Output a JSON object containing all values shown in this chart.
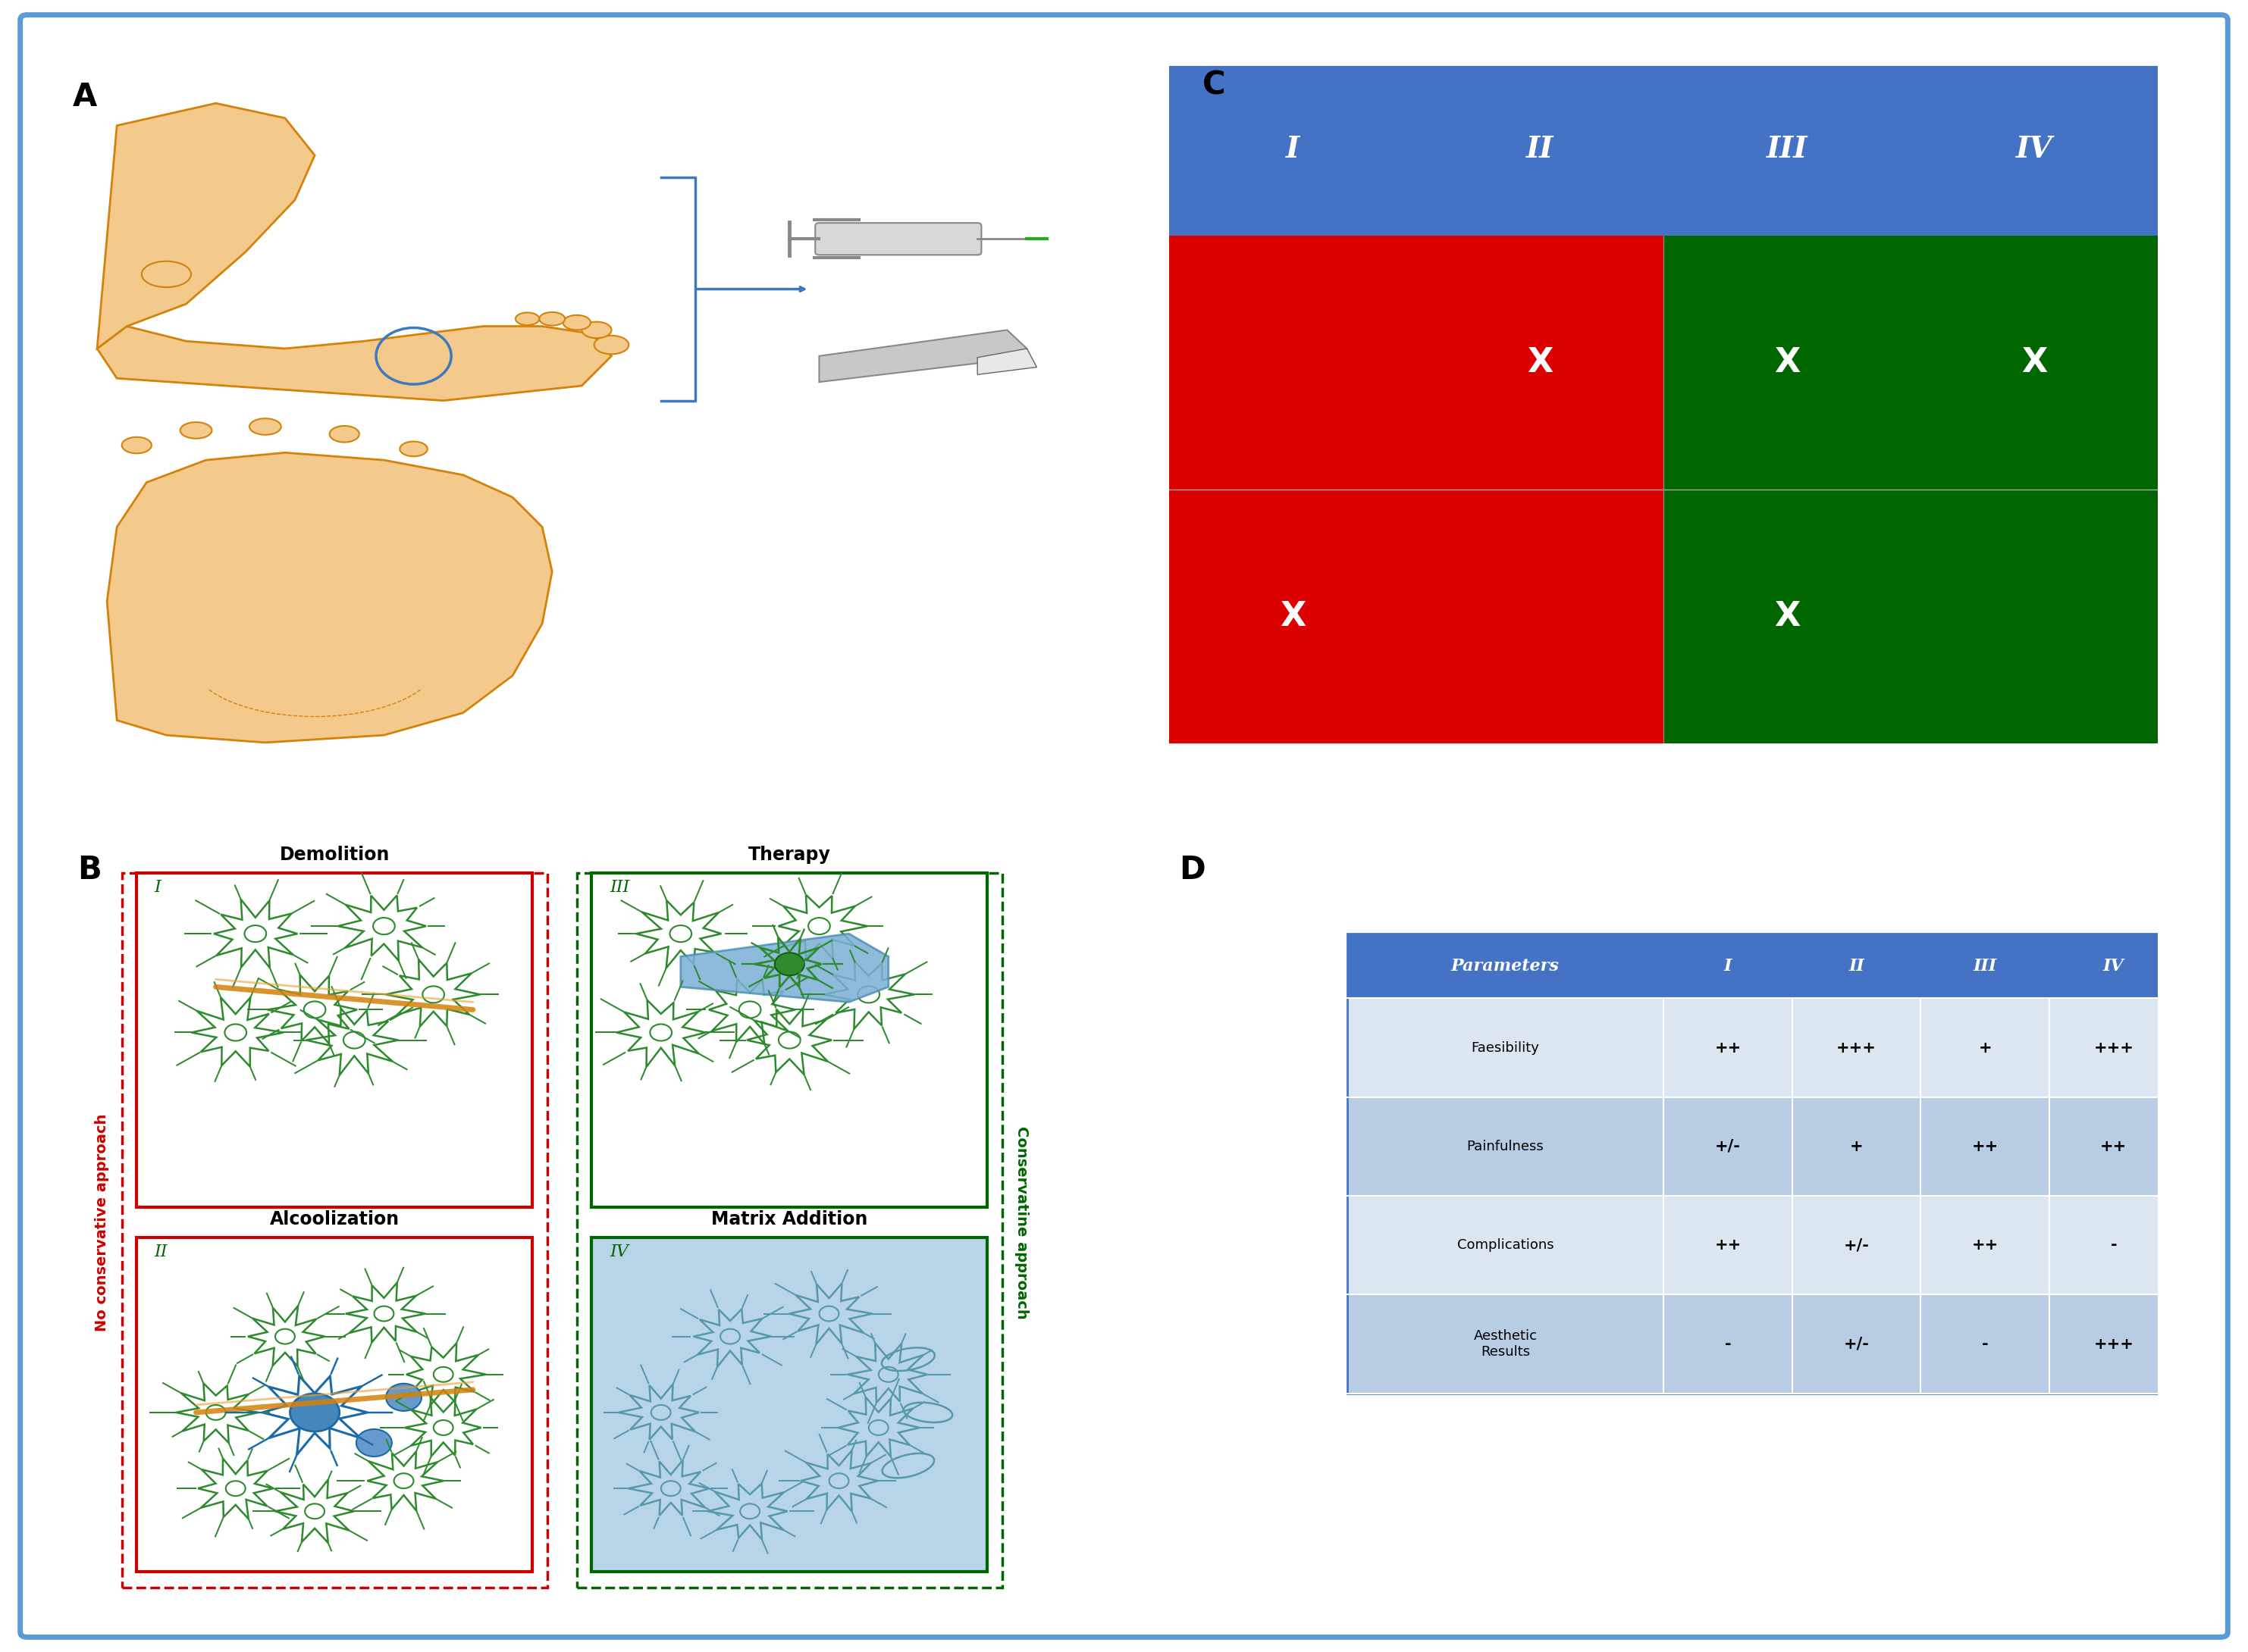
{
  "fig_width": 29.65,
  "fig_height": 21.8,
  "bg_color": "#ffffff",
  "outer_border_color": "#5b9bd5",
  "panel_C": {
    "header_color": "#4472c4",
    "header_labels": [
      "I",
      "II",
      "III",
      "IV"
    ],
    "row1_x": [
      false,
      true,
      true,
      true
    ],
    "row2_x": [
      true,
      false,
      true,
      false
    ]
  },
  "panel_D": {
    "header_color": "#4472c4",
    "header_labels": [
      "Parameters",
      "I",
      "II",
      "III",
      "IV"
    ],
    "row_bg_odd": "#dce6f1",
    "row_bg_even": "#b8cce4",
    "rows": [
      [
        "Faesibility",
        "++",
        "+++",
        "+",
        "+++"
      ],
      [
        "Painfulness",
        "+/-",
        "+",
        "++",
        "++"
      ],
      [
        "Complications",
        "++",
        "+/-",
        "++",
        "-"
      ],
      [
        "Aesthetic\nResults",
        "-",
        "+/-",
        "-",
        "+++"
      ]
    ]
  }
}
